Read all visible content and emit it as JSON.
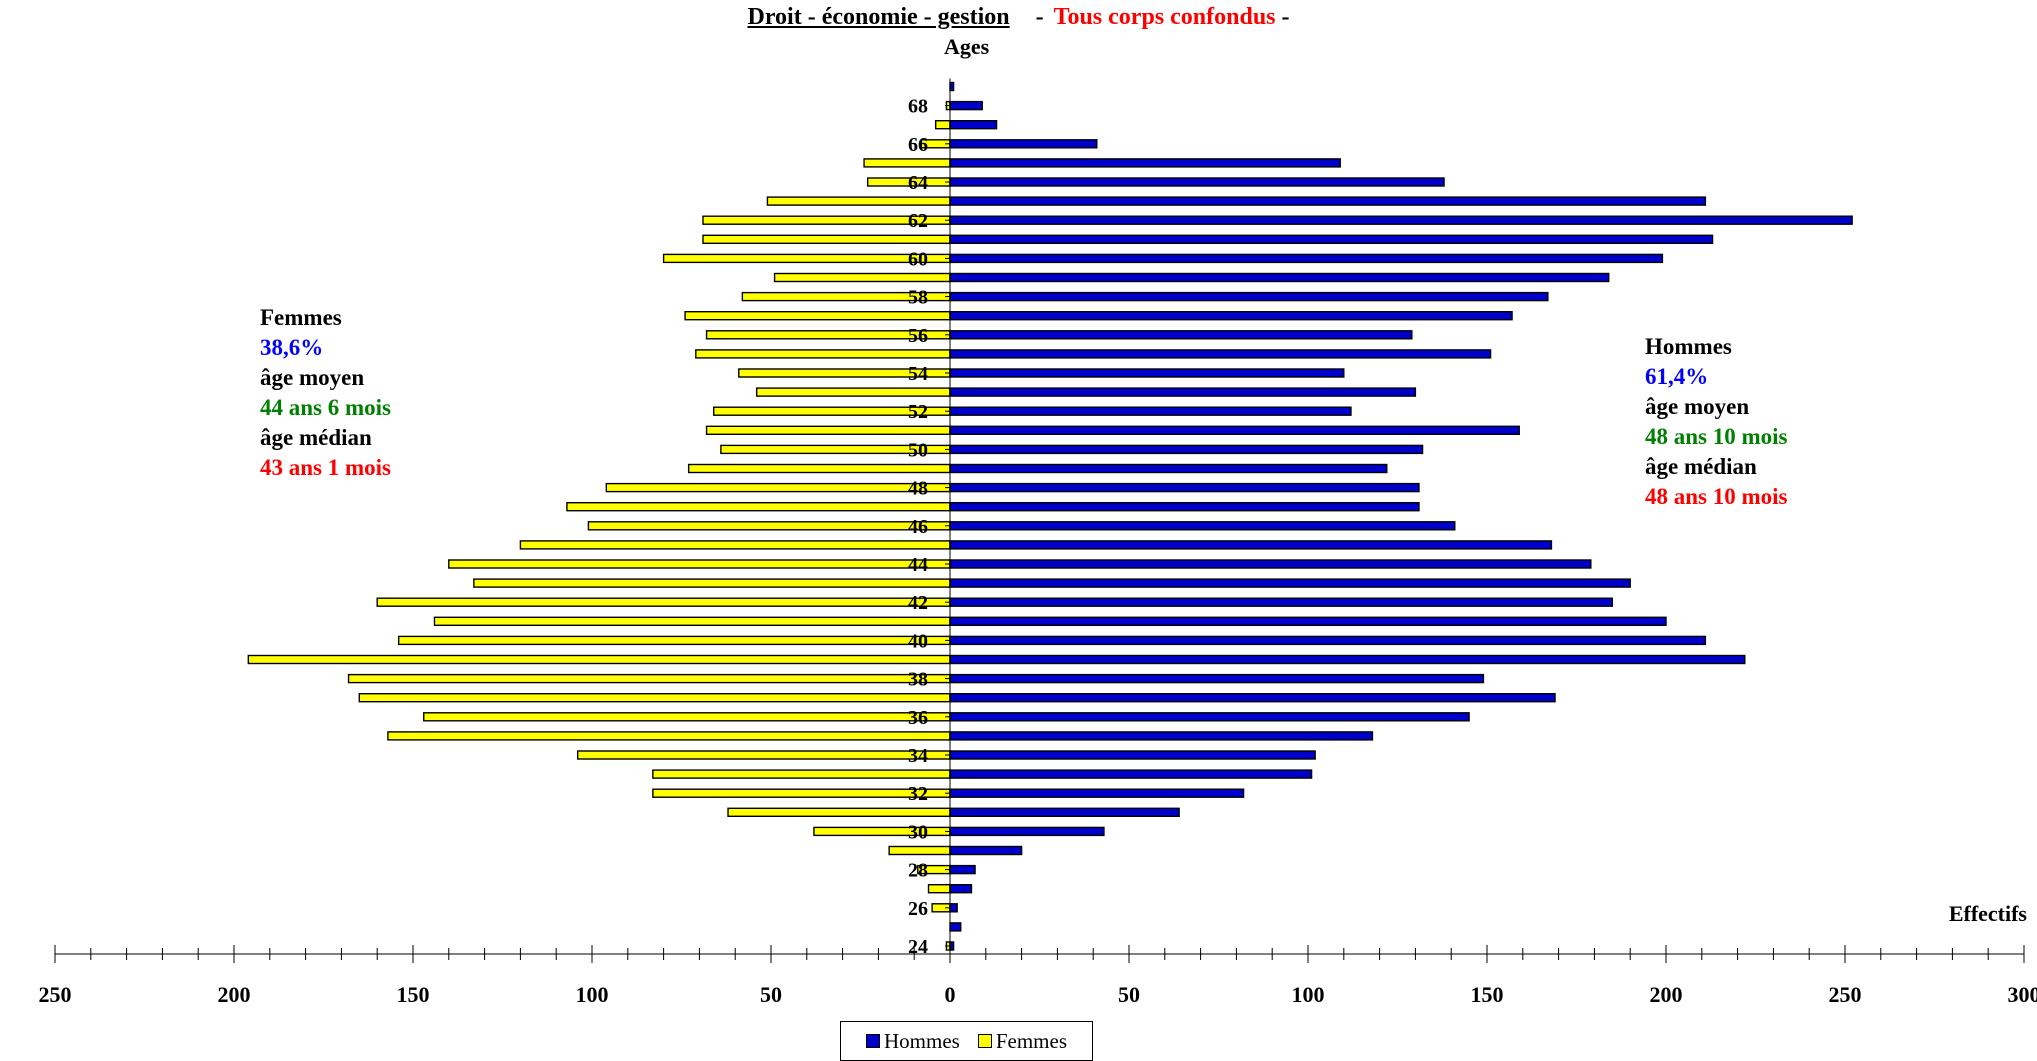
{
  "header": {
    "title": "Droit - économie - gestion",
    "separator": "-",
    "subtitle": "Tous corps confondus",
    "end": "-"
  },
  "chart_data": {
    "type": "bar",
    "orientation": "horizontal",
    "ylabel": "Ages",
    "xlabel": "Effectifs",
    "xlim": [
      -250,
      300
    ],
    "x_tick_labels": [
      "250",
      "200",
      "150",
      "100",
      "50",
      "0",
      "50",
      "100",
      "150",
      "200",
      "250",
      "300"
    ],
    "categories": [
      24,
      25,
      26,
      27,
      28,
      29,
      30,
      31,
      32,
      33,
      34,
      35,
      36,
      37,
      38,
      39,
      40,
      41,
      42,
      43,
      44,
      45,
      46,
      47,
      48,
      49,
      50,
      51,
      52,
      53,
      54,
      55,
      56,
      57,
      58,
      59,
      60,
      61,
      62,
      63,
      64,
      65,
      66,
      67,
      68,
      69
    ],
    "y_tick_labels": [
      "24",
      "26",
      "28",
      "30",
      "32",
      "34",
      "36",
      "38",
      "40",
      "42",
      "44",
      "46",
      "48",
      "50",
      "52",
      "54",
      "56",
      "58",
      "60",
      "62",
      "64",
      "66",
      "68"
    ],
    "series": [
      {
        "name": "Hommes",
        "color": "#0000cc",
        "values": [
          1,
          3,
          2,
          6,
          7,
          20,
          43,
          64,
          82,
          101,
          102,
          118,
          145,
          169,
          149,
          222,
          211,
          200,
          185,
          190,
          179,
          168,
          141,
          131,
          131,
          122,
          132,
          159,
          112,
          130,
          110,
          151,
          129,
          157,
          167,
          184,
          199,
          213,
          252,
          211,
          138,
          109,
          41,
          13,
          9,
          1
        ]
      },
      {
        "name": "Femmes",
        "color": "#ffff00",
        "values": [
          1,
          0,
          5,
          6,
          9,
          17,
          38,
          62,
          83,
          83,
          104,
          157,
          147,
          165,
          168,
          196,
          154,
          144,
          160,
          133,
          140,
          120,
          101,
          107,
          96,
          73,
          64,
          68,
          66,
          54,
          59,
          71,
          68,
          74,
          58,
          49,
          80,
          69,
          69,
          51,
          23,
          24,
          8,
          4,
          1,
          0
        ]
      }
    ],
    "grid": false,
    "legend_position": "bottom-center"
  },
  "annotations": {
    "femmes": {
      "label": "Femmes",
      "percent": "38,6%",
      "mean_label": "âge moyen",
      "mean_value": "44 ans 6 mois",
      "median_label": "âge médian",
      "median_value": "43 ans 1 mois"
    },
    "hommes": {
      "label": "Hommes",
      "percent": "61,4%",
      "mean_label": "âge moyen",
      "mean_value": "48 ans 10 mois",
      "median_label": "âge médian",
      "median_value": "48 ans 10 mois"
    }
  },
  "legend": {
    "hommes": "Hommes",
    "femmes": "Femmes"
  },
  "colors": {
    "hommes": "#0000cc",
    "femmes": "#ffff00",
    "outline": "#000000"
  }
}
